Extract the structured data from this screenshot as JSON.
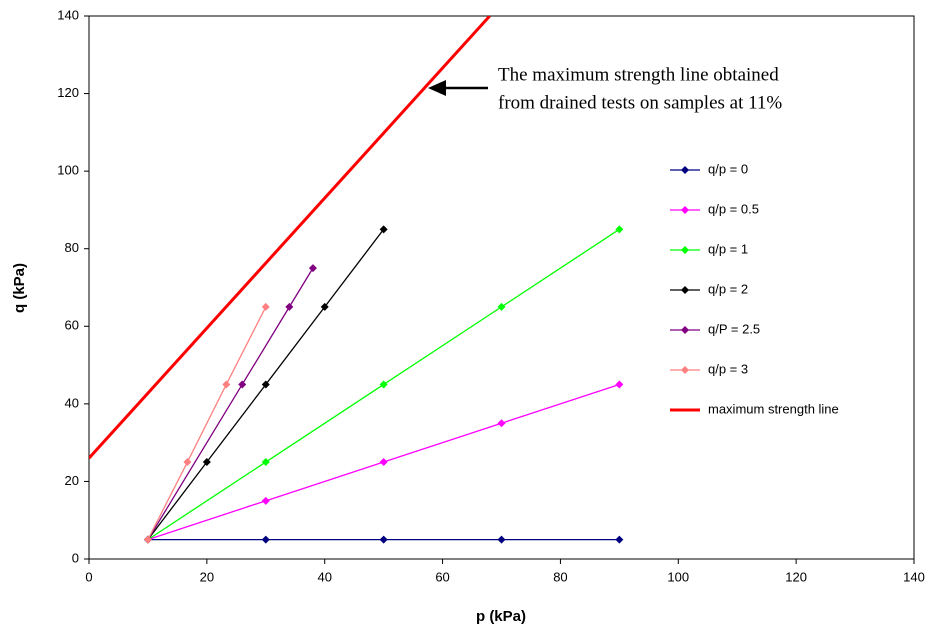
{
  "chart_data": {
    "type": "line",
    "xlabel": "p (kPa)",
    "ylabel": "q (kPa)",
    "annotation": [
      "The maximum strength line obtained",
      "from drained tests on samples at 11%"
    ],
    "xlim": [
      0,
      140
    ],
    "ylim": [
      0,
      140
    ],
    "xticks": [
      0,
      20,
      40,
      60,
      80,
      100,
      120,
      140
    ],
    "yticks": [
      0,
      20,
      40,
      60,
      80,
      100,
      120,
      140
    ],
    "grid": false,
    "legend": "right",
    "series": [
      {
        "name": "q/p = 0",
        "color": "#000080",
        "markers": true,
        "x": [
          10,
          30,
          50,
          70,
          90
        ],
        "values": [
          5,
          5,
          5,
          5,
          5
        ]
      },
      {
        "name": "q/p = 0.5",
        "color": "#ff00ff",
        "markers": true,
        "x": [
          10,
          30,
          50,
          70,
          90
        ],
        "values": [
          5,
          15,
          25,
          35,
          45
        ]
      },
      {
        "name": "q/p = 1",
        "color": "#00ff00",
        "markers": true,
        "x": [
          10,
          30,
          50,
          70,
          90
        ],
        "values": [
          5,
          25,
          45,
          65,
          85
        ]
      },
      {
        "name": "q/p = 2",
        "color": "#000000",
        "markers": true,
        "x": [
          10,
          20,
          30,
          40,
          50
        ],
        "values": [
          5,
          25,
          45,
          65,
          85
        ]
      },
      {
        "name": "q/P = 2.5",
        "color": "#800080",
        "markers": true,
        "x": [
          10,
          26,
          34,
          38
        ],
        "values": [
          5,
          45,
          65,
          75
        ]
      },
      {
        "name": "q/p = 3",
        "color": "#ff8080",
        "markers": true,
        "x": [
          10,
          16.7,
          23.3,
          30
        ],
        "values": [
          5,
          25,
          45,
          65
        ]
      },
      {
        "name": "maximum strength line",
        "color": "#ff0000",
        "markers": false,
        "width": 3,
        "x": [
          0,
          68
        ],
        "values": [
          26,
          140
        ]
      }
    ]
  }
}
